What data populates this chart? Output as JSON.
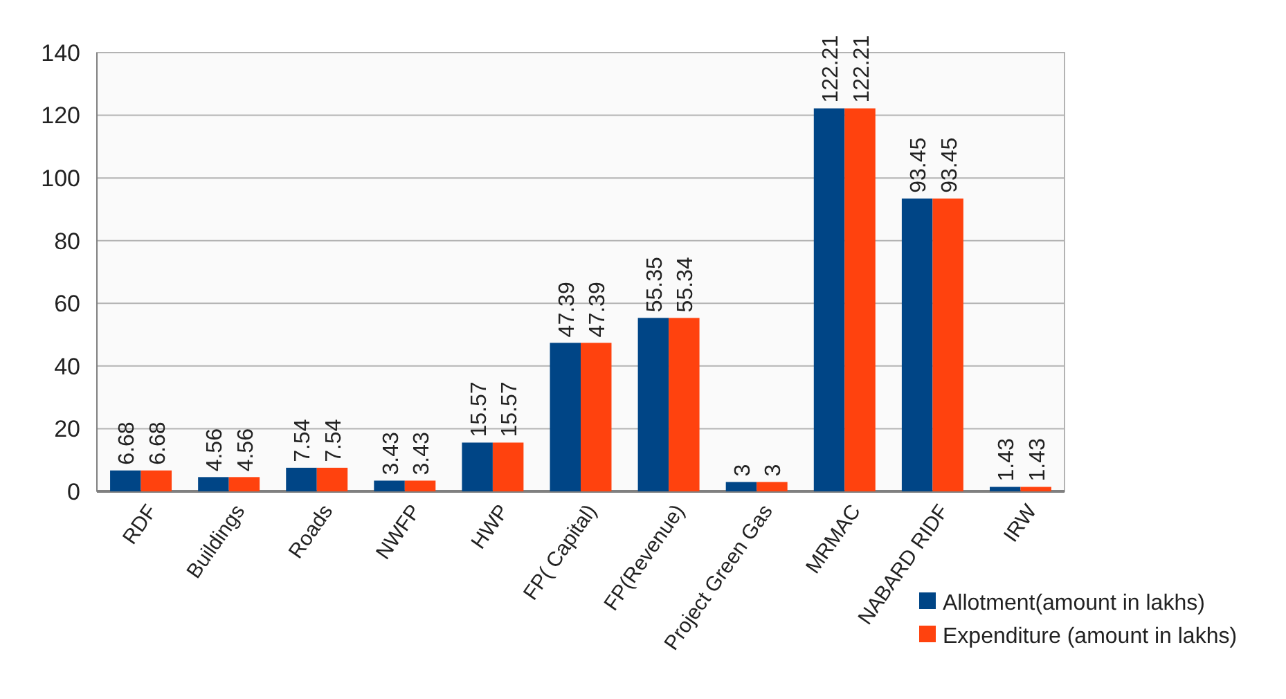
{
  "chart_data": {
    "type": "bar",
    "categories": [
      "RDF",
      "Buildings",
      "Roads",
      "NWFP",
      "HWP",
      "FP( Capital)",
      "FP(Revenue)",
      "Project Green Gas",
      "MRMAC",
      "NABARD RIDF",
      "IRW"
    ],
    "series": [
      {
        "name": "Allotment(amount in lakhs)",
        "color": "#004586",
        "values": [
          6.68,
          4.56,
          7.54,
          3.43,
          15.57,
          47.39,
          55.35,
          3,
          122.21,
          93.45,
          1.43
        ]
      },
      {
        "name": "Expenditure (amount in lakhs)",
        "color": "#ff420e",
        "values": [
          6.68,
          4.56,
          7.54,
          3.43,
          15.57,
          47.39,
          55.34,
          3,
          122.21,
          93.45,
          1.43
        ]
      }
    ],
    "ylim": [
      0,
      140
    ],
    "yticks": [
      0,
      20,
      40,
      60,
      80,
      100,
      120,
      140
    ],
    "grid": "y",
    "legend": "bottom right",
    "data_labels": true
  }
}
